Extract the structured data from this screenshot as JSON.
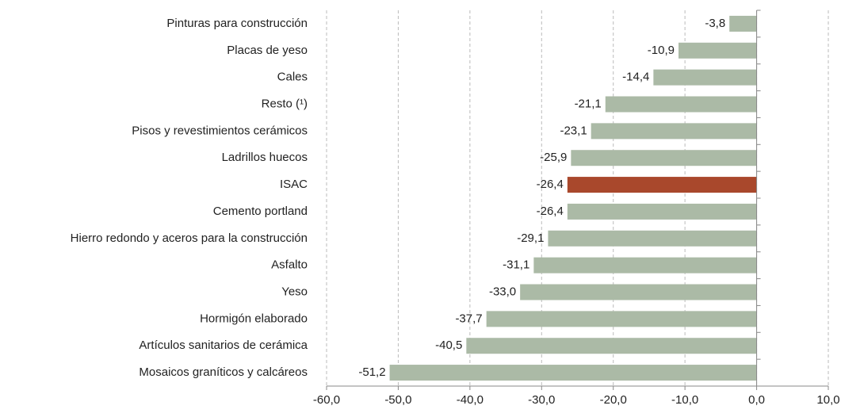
{
  "chart_data": {
    "type": "bar",
    "orientation": "horizontal",
    "categories": [
      "Pinturas para construcción",
      "Placas de yeso",
      "Cales",
      "Resto (¹)",
      "Pisos y revestimientos cerámicos",
      "Ladrillos huecos",
      "ISAC",
      "Cemento portland",
      "Hierro redondo y aceros para la construcción",
      "Asfalto",
      "Yeso",
      "Hormigón elaborado",
      "Artículos sanitarios de cerámica",
      "Mosaicos graníticos y calcáreos"
    ],
    "values": [
      -3.8,
      -10.9,
      -14.4,
      -21.1,
      -23.1,
      -25.9,
      -26.4,
      -26.4,
      -29.1,
      -31.1,
      -33.0,
      -37.7,
      -40.5,
      -51.2
    ],
    "value_labels": [
      "-3,8",
      "-10,9",
      "-14,4",
      "-21,1",
      "-23,1",
      "-25,9",
      "-26,4",
      "-26,4",
      "-29,1",
      "-31,1",
      "-33,0",
      "-37,7",
      "-40,5",
      "-51,2"
    ],
    "colors": [
      "#abbaa6",
      "#abbaa6",
      "#abbaa6",
      "#abbaa6",
      "#abbaa6",
      "#abbaa6",
      "#a9482c",
      "#abbaa6",
      "#abbaa6",
      "#abbaa6",
      "#abbaa6",
      "#abbaa6",
      "#abbaa6",
      "#abbaa6"
    ],
    "xlim": [
      -60,
      10
    ],
    "xticks": [
      {
        "value": -60,
        "label": "-60,0"
      },
      {
        "value": -50,
        "label": "-50,0"
      },
      {
        "value": -40,
        "label": "-40,0"
      },
      {
        "value": -30,
        "label": "-30,0"
      },
      {
        "value": -20,
        "label": "-20,0"
      },
      {
        "value": -10,
        "label": "-10,0"
      },
      {
        "value": 0,
        "label": "0,0"
      },
      {
        "value": 10,
        "label": "10,0"
      }
    ],
    "grid": true
  }
}
